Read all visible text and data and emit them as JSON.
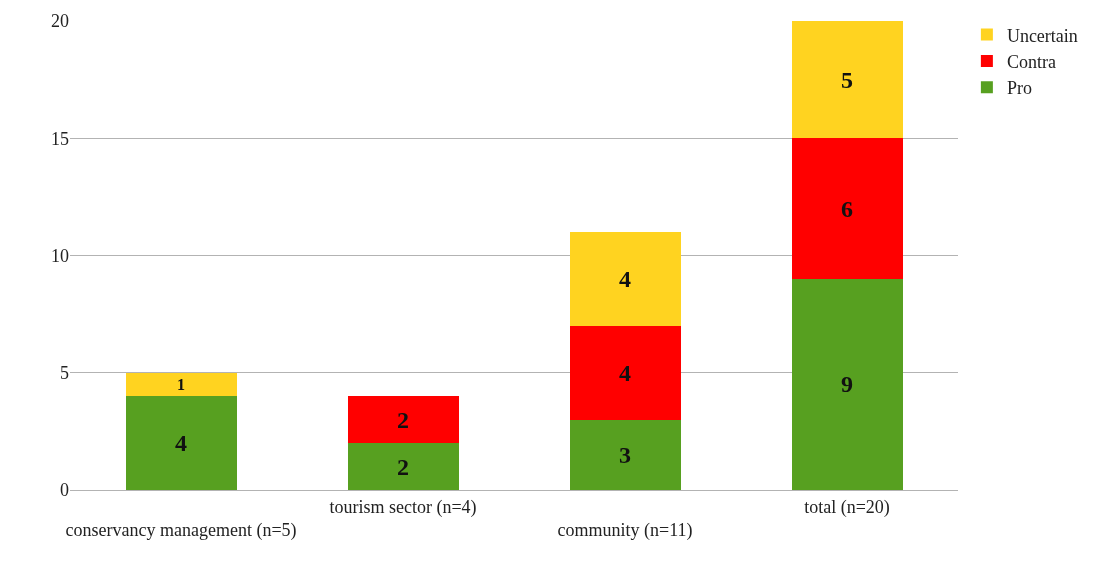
{
  "chart_data": {
    "type": "bar",
    "stacked": true,
    "categories": [
      "conservancy management (n=5)",
      "tourism sector (n=4)",
      "community (n=11)",
      "total (n=20)"
    ],
    "series": [
      {
        "name": "Pro",
        "color": "#57a020",
        "values": [
          4,
          2,
          3,
          9
        ],
        "value_labels": [
          "4",
          "2",
          "3",
          "9"
        ]
      },
      {
        "name": "Contra",
        "color": "#ff0000",
        "values": [
          0,
          2,
          4,
          6
        ],
        "value_labels": [
          null,
          "2",
          "4",
          "6"
        ]
      },
      {
        "name": "Uncertain",
        "color": "#ffd320",
        "values": [
          1,
          0,
          4,
          5
        ],
        "value_labels": [
          "1",
          null,
          "4",
          "5"
        ]
      }
    ],
    "ylim": [
      0,
      20
    ],
    "yticks": [
      0,
      5,
      10,
      15,
      20
    ],
    "grid": "y",
    "legend": "top right"
  }
}
